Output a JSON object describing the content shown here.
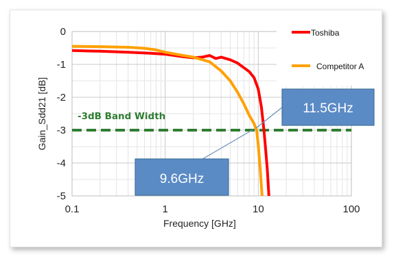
{
  "chart_data": {
    "type": "line",
    "xscale": "log",
    "xlim": [
      0.1,
      100
    ],
    "ylim": [
      -5,
      0
    ],
    "xlabel": "Frequency [GHz]",
    "ylabel": "Gain_Sdd21 [dB]",
    "x_ticks": [
      "0.1",
      "1",
      "10",
      "100"
    ],
    "y_ticks": [
      "0",
      "-1",
      "-2",
      "-3",
      "-4",
      "-5"
    ],
    "grid": true,
    "legend_position": "top-right",
    "series": [
      {
        "name": "Toshiba",
        "color": "#ff0000",
        "points": [
          [
            0.1,
            -0.58
          ],
          [
            0.2,
            -0.6
          ],
          [
            0.4,
            -0.63
          ],
          [
            0.7,
            -0.66
          ],
          [
            1.0,
            -0.69
          ],
          [
            1.5,
            -0.76
          ],
          [
            2.0,
            -0.8
          ],
          [
            2.5,
            -0.78
          ],
          [
            3.0,
            -0.73
          ],
          [
            3.5,
            -0.82
          ],
          [
            4.0,
            -0.78
          ],
          [
            5.0,
            -0.86
          ],
          [
            6.0,
            -0.96
          ],
          [
            7.0,
            -1.1
          ],
          [
            8.0,
            -1.22
          ],
          [
            9.0,
            -1.4
          ],
          [
            10.0,
            -1.75
          ],
          [
            10.8,
            -2.3
          ],
          [
            11.5,
            -3.0
          ],
          [
            12.0,
            -3.6
          ],
          [
            12.5,
            -4.2
          ],
          [
            13.0,
            -5.0
          ]
        ]
      },
      {
        "name": "Competitor A",
        "color": "#ffa000",
        "points": [
          [
            0.1,
            -0.45
          ],
          [
            0.2,
            -0.46
          ],
          [
            0.4,
            -0.48
          ],
          [
            0.6,
            -0.51
          ],
          [
            0.8,
            -0.56
          ],
          [
            1.0,
            -0.63
          ],
          [
            1.5,
            -0.72
          ],
          [
            2.0,
            -0.78
          ],
          [
            3.0,
            -0.92
          ],
          [
            4.0,
            -1.2
          ],
          [
            5.0,
            -1.5
          ],
          [
            6.0,
            -1.85
          ],
          [
            7.0,
            -2.2
          ],
          [
            8.0,
            -2.55
          ],
          [
            9.0,
            -2.8
          ],
          [
            9.6,
            -3.0
          ],
          [
            10.0,
            -3.45
          ],
          [
            10.5,
            -4.2
          ],
          [
            11.0,
            -5.0
          ]
        ]
      }
    ],
    "reference_line": {
      "label": "-3dB Band Width",
      "y": -3,
      "color": "#2f7d32"
    },
    "annotations": [
      {
        "text": "11.5GHz",
        "x": 11.5,
        "y": -3
      },
      {
        "text": "9.6GHz",
        "x": 9.6,
        "y": -3
      }
    ]
  },
  "legend": {
    "toshiba": "Toshiba",
    "competitor": "Competitor A"
  }
}
